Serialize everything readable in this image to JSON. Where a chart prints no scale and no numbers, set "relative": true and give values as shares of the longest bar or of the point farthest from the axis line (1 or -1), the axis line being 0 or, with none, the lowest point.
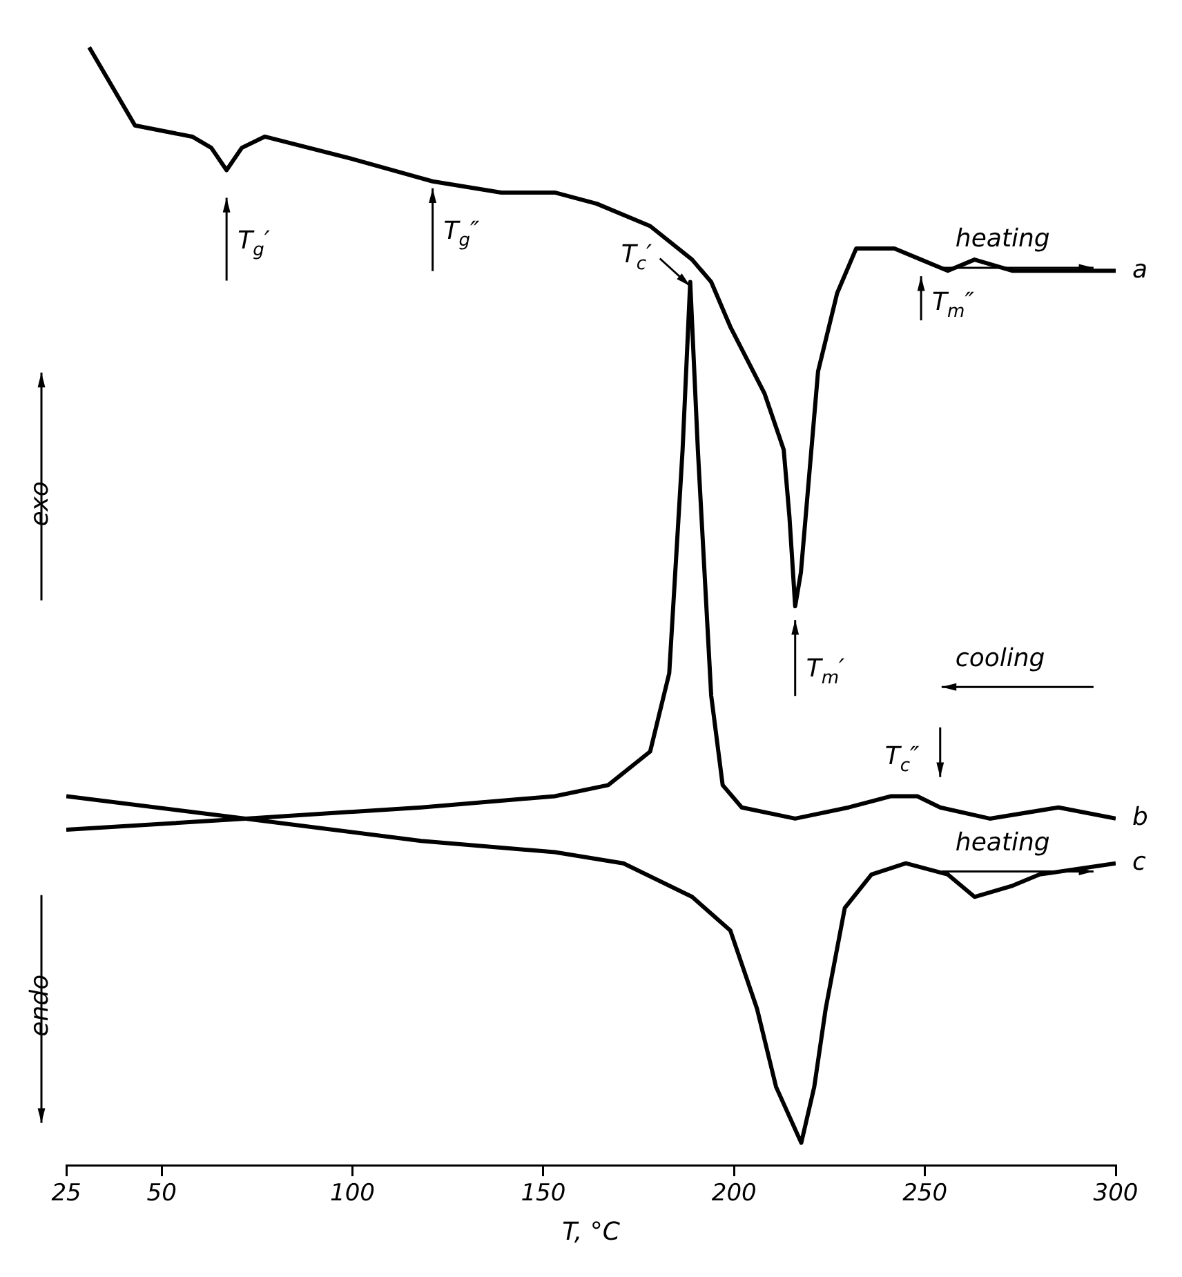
{
  "chart_data": {
    "type": "line",
    "relative": true,
    "legend": "right",
    "xlabel": "T, °C",
    "xlim": [
      25,
      300
    ],
    "xticks": [
      25,
      50,
      100,
      150,
      200,
      250,
      300
    ],
    "grid": false,
    "series": [
      {
        "name": "a",
        "color": "#000000",
        "x": [
          31,
          43,
          58,
          63,
          67,
          71,
          77,
          100,
          121,
          139,
          153,
          164,
          178,
          189,
          194,
          199,
          208,
          212,
          213,
          214.5,
          216,
          217.5,
          219,
          222,
          227,
          232,
          237,
          242,
          249,
          256,
          263,
          273,
          300
        ],
        "values": [
          1.0,
          0.93,
          0.92,
          0.91,
          0.89,
          0.91,
          0.92,
          0.9,
          0.88,
          0.87,
          0.87,
          0.86,
          0.84,
          0.81,
          0.79,
          0.75,
          0.69,
          0.65,
          0.64,
          0.58,
          0.5,
          0.53,
          0.59,
          0.71,
          0.78,
          0.82,
          0.82,
          0.82,
          0.81,
          0.8,
          0.81,
          0.8,
          0.8
        ]
      },
      {
        "name": "b",
        "color": "#000000",
        "x": [
          25,
          72,
          118,
          153,
          167,
          178,
          183,
          186.5,
          188.5,
          190.5,
          194,
          197,
          202,
          216,
          230,
          241,
          248,
          254,
          267,
          285,
          300
        ],
        "values": [
          0.3,
          0.31,
          0.32,
          0.33,
          0.34,
          0.37,
          0.44,
          0.64,
          0.79,
          0.64,
          0.42,
          0.34,
          0.32,
          0.31,
          0.32,
          0.33,
          0.33,
          0.32,
          0.31,
          0.32,
          0.31
        ]
      },
      {
        "name": "c",
        "color": "#000000",
        "x": [
          25,
          72,
          118,
          153,
          171,
          189,
          199,
          206,
          211,
          217.6,
          221,
          224,
          229,
          236,
          245,
          256,
          263,
          273,
          280,
          300
        ],
        "values": [
          0.33,
          0.31,
          0.29,
          0.28,
          0.27,
          0.24,
          0.21,
          0.14,
          0.07,
          0.02,
          0.07,
          0.14,
          0.23,
          0.26,
          0.27,
          0.26,
          0.24,
          0.25,
          0.26,
          0.27
        ]
      }
    ],
    "annotations": [
      {
        "text": "T$_{g}$′",
        "x": 67,
        "y": 0.89
      },
      {
        "text": "T$_{g}$″",
        "x": 121,
        "y": 0.88
      },
      {
        "text": "T$_{c}$′",
        "x": 188.5,
        "y": 0.79
      },
      {
        "text": "T$_{m}$″",
        "x": 249,
        "y": 0.81
      },
      {
        "text": "T$_{m}$′",
        "x": 216,
        "y": 0.5
      },
      {
        "text": "T$_{c}$″",
        "x": 254,
        "y": 0.32
      },
      "heating",
      "cooling",
      "heating",
      "exo",
      "endo"
    ]
  }
}
